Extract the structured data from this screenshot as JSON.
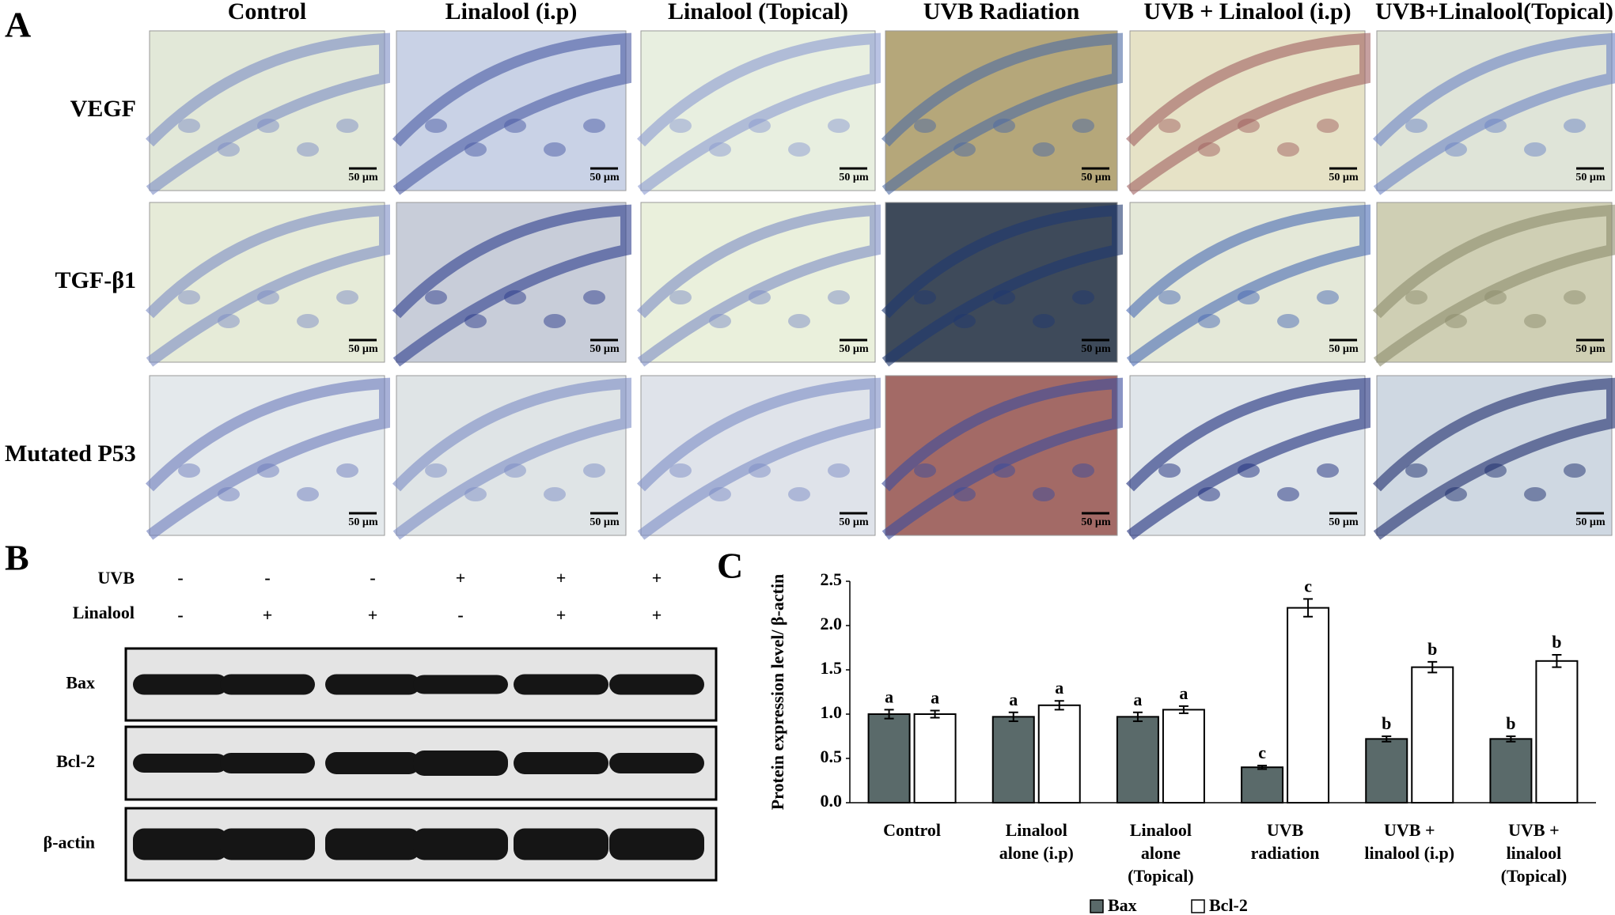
{
  "panel_a": {
    "label": "A",
    "columns": [
      "Control",
      "Linalool (i.p)",
      "Linalool (Topical)",
      "UVB Radiation",
      "UVB + Linalool (i.p)",
      "UVB+Linalool(Topical)"
    ],
    "rows": [
      "VEGF",
      "TGF-β1",
      "Mutated P53"
    ],
    "scale_bar": "50 µm"
  },
  "panel_b": {
    "label": "B",
    "uvb_label": "UVB",
    "linalool_label": "Linalool",
    "uvb_signs": [
      "-",
      "-",
      "-",
      "+",
      "+",
      "+"
    ],
    "linalool_signs": [
      "-",
      "+",
      "+",
      "-",
      "+",
      "+"
    ],
    "blots": [
      "Bax",
      "Bcl-2",
      "β-actin"
    ]
  },
  "chart_data": {
    "type": "bar",
    "label": "C",
    "y_label": "Protein expression level/ β-actin",
    "categories": [
      [
        "Control"
      ],
      [
        "Linalool",
        "alone (i.p)"
      ],
      [
        "Linalool",
        "alone",
        "(Topical)"
      ],
      [
        "UVB",
        "radiation"
      ],
      [
        "UVB +",
        "linalool (i.p)"
      ],
      [
        "UVB +",
        "linalool",
        "(Topical)"
      ]
    ],
    "series": [
      {
        "name": "Bax",
        "color": "#5a6a6a",
        "values": [
          1.0,
          0.97,
          0.97,
          0.4,
          0.72,
          0.72
        ],
        "errors": [
          0.05,
          0.05,
          0.05,
          0.02,
          0.03,
          0.03
        ],
        "letters": [
          "a",
          "a",
          "a",
          "c",
          "b",
          "b"
        ]
      },
      {
        "name": "Bcl-2",
        "color": "#ffffff",
        "values": [
          1.0,
          1.1,
          1.05,
          2.2,
          1.53,
          1.6
        ],
        "errors": [
          0.04,
          0.05,
          0.04,
          0.1,
          0.06,
          0.07
        ],
        "letters": [
          "a",
          "a",
          "a",
          "c",
          "b",
          "b"
        ]
      }
    ],
    "ylim": [
      0,
      2.5
    ],
    "yticks": [
      {
        "value": 0,
        "label": "0.0"
      },
      0.5,
      {
        "value": 1,
        "label": "1.0"
      },
      1.5,
      {
        "value": 2,
        "label": "2.0"
      },
      2.5
    ]
  }
}
